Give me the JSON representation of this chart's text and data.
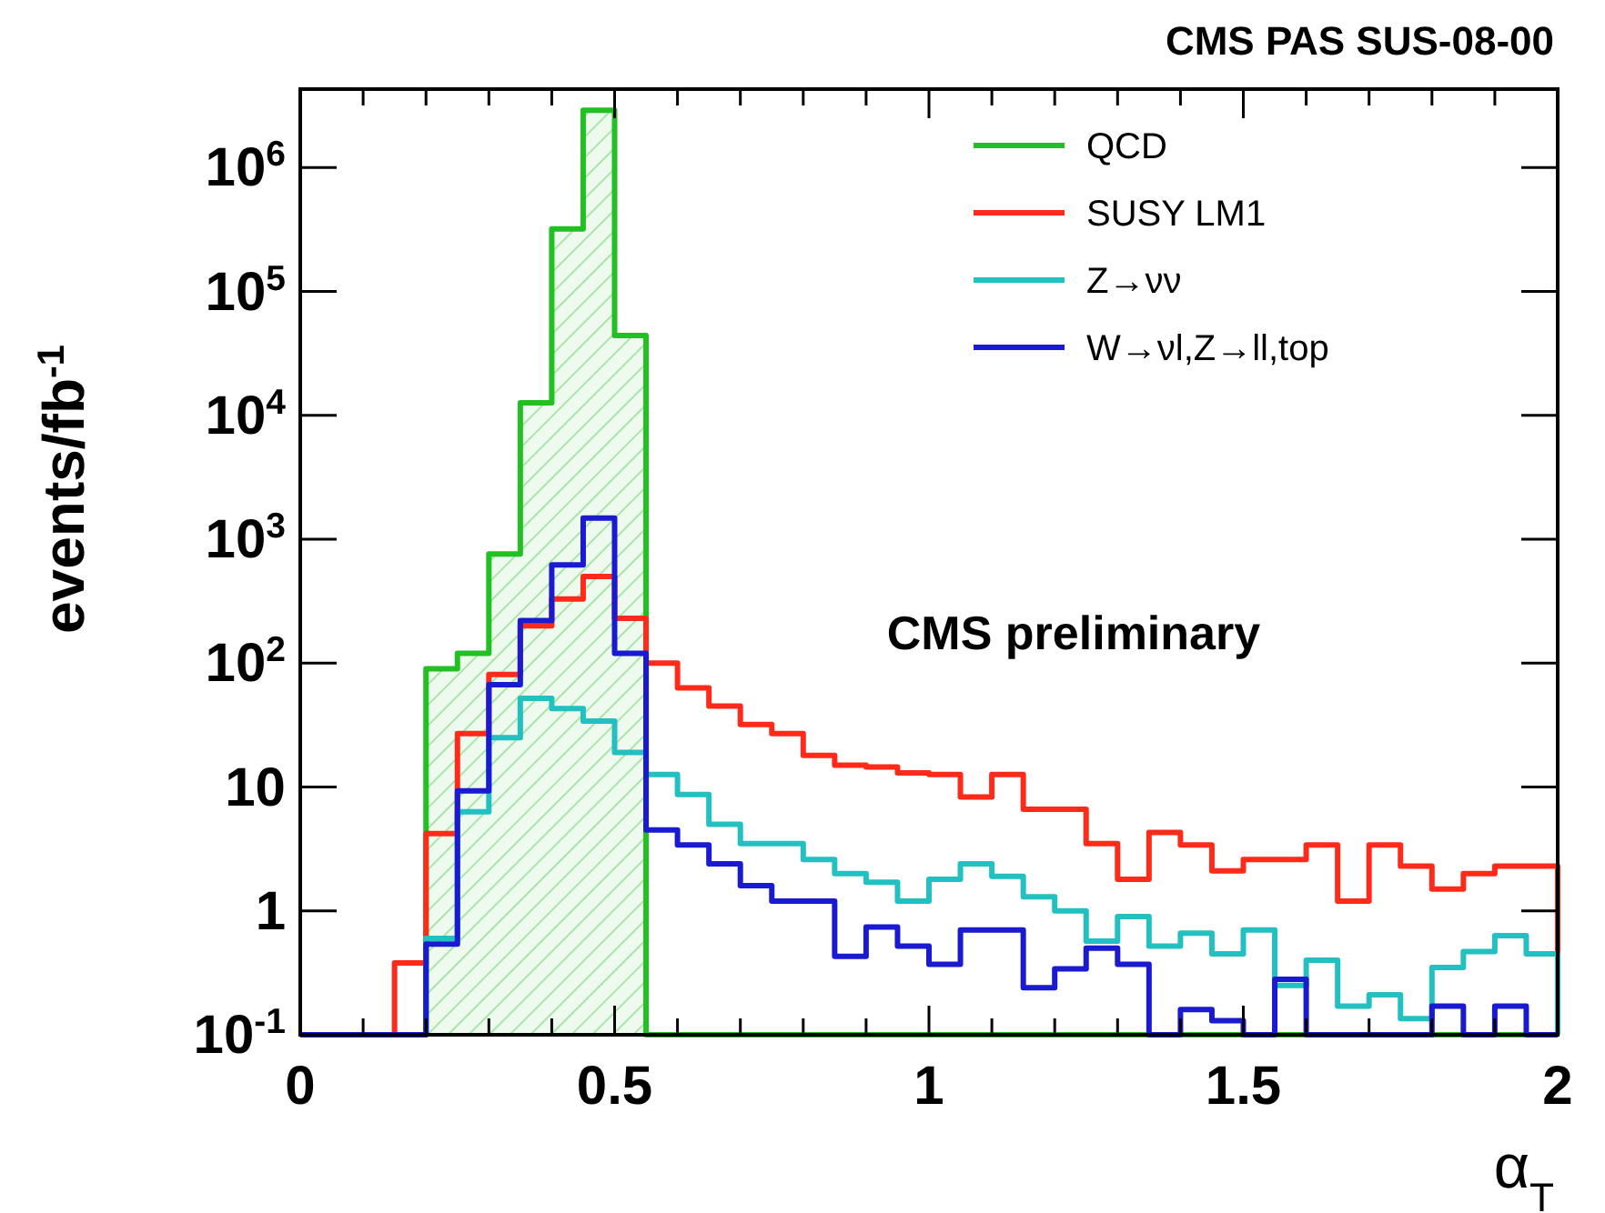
{
  "chart_data": {
    "type": "histogram",
    "title": "CMS PAS SUS-08-00",
    "xlabel": "α$_{T}$",
    "ylabel": "events/fb$^{-1}$",
    "annotations": [
      "CMS preliminary"
    ],
    "bins": [
      0,
      0.05,
      0.1,
      0.15,
      0.2,
      0.25,
      0.3,
      0.35,
      0.4,
      0.45,
      0.5,
      0.55,
      0.6,
      0.65,
      0.7,
      0.75,
      0.8,
      0.85,
      0.9,
      0.95,
      1,
      1.05,
      1.1,
      1.15,
      1.2,
      1.25,
      1.3,
      1.35,
      1.4,
      1.45,
      1.5,
      1.55,
      1.6,
      1.65,
      1.7,
      1.75,
      1.8,
      1.85,
      1.9,
      1.95,
      2
    ],
    "series": [
      {
        "name": "QCD",
        "color": "#22c022",
        "values": [
          null,
          null,
          null,
          null,
          90,
          120,
          760,
          12600,
          320000,
          2900000,
          44000,
          null,
          null,
          null,
          null,
          null,
          null,
          null,
          null,
          null,
          null,
          null,
          null,
          null,
          null,
          null,
          null,
          null,
          null,
          null,
          null,
          null,
          null,
          null,
          null,
          null,
          null,
          null,
          null,
          null
        ]
      },
      {
        "name": "SUSY LM1",
        "color": "#ff2a1a",
        "values": [
          null,
          null,
          null,
          0.38,
          4.2,
          27,
          81,
          200,
          330,
          500,
          230,
          100,
          63,
          45,
          32,
          27,
          18,
          15,
          14.5,
          13,
          12.6,
          8.3,
          12.6,
          6.6,
          6.6,
          3.5,
          1.8,
          4.3,
          3.4,
          2.1,
          2.6,
          2.6,
          3.4,
          1.2,
          3.4,
          2.3,
          1.5,
          2.0,
          2.3,
          2.3
        ]
      },
      {
        "name": "Z→νν",
        "color": "#22c0c0",
        "values": [
          null,
          null,
          null,
          null,
          0.6,
          6.3,
          25,
          52,
          43,
          34,
          19,
          12.6,
          8.7,
          5,
          3.5,
          3.5,
          2.6,
          2.0,
          1.7,
          1.2,
          1.8,
          2.4,
          1.9,
          1.3,
          1.0,
          0.57,
          0.9,
          0.52,
          0.66,
          0.45,
          0.7,
          0.25,
          0.4,
          0.17,
          0.21,
          0.135,
          0.35,
          0.47,
          0.63,
          0.45
        ]
      },
      {
        "name": "W→νl,Z→ll,top",
        "color": "#1a1ad0",
        "values": [
          null,
          null,
          null,
          null,
          0.54,
          9.3,
          67,
          220,
          620,
          1480,
          120,
          4.5,
          3.4,
          2.4,
          1.6,
          1.2,
          1.2,
          0.43,
          0.74,
          0.52,
          0.37,
          0.7,
          0.7,
          0.24,
          0.34,
          0.5,
          0.37,
          null,
          0.16,
          0.13,
          null,
          0.28,
          null,
          null,
          null,
          null,
          0.17,
          null,
          0.17,
          null
        ]
      }
    ],
    "log": "y",
    "xlim": [
      0,
      2
    ],
    "ylim": [
      0.1,
      4300000
    ],
    "xticks": [
      0,
      {
        "value": 0.1,
        "label": null
      },
      {
        "value": 0.2,
        "label": null
      },
      {
        "value": 0.3,
        "label": null
      },
      {
        "value": 0.4,
        "label": null
      },
      0.5,
      {
        "value": 0.6,
        "label": null
      },
      {
        "value": 0.7,
        "label": null
      },
      {
        "value": 0.8,
        "label": null
      },
      {
        "value": 0.9,
        "label": null
      },
      1,
      {
        "value": 1.1,
        "label": null
      },
      {
        "value": 1.2,
        "label": null
      },
      {
        "value": 1.3,
        "label": null
      },
      {
        "value": 1.4,
        "label": null
      },
      1.5,
      {
        "value": 1.6,
        "label": null
      },
      {
        "value": 1.7,
        "label": null
      },
      {
        "value": 1.8,
        "label": null
      },
      {
        "value": 1.9,
        "label": null
      },
      2
    ],
    "yticks": [
      {
        "value": 0.1,
        "label": "10$^{-1}$"
      },
      1,
      10,
      {
        "value": 100,
        "label": "10$^{2}$"
      },
      {
        "value": 1000,
        "label": "10$^{3}$"
      },
      {
        "value": 10000,
        "label": "10$^{4}$"
      },
      {
        "value": 100000,
        "label": "10$^{5}$"
      },
      {
        "value": 1000000,
        "label": "10$^{6}$"
      }
    ],
    "legend": "top right",
    "marker": "none",
    "line_style": "solid",
    "grid": false
  }
}
